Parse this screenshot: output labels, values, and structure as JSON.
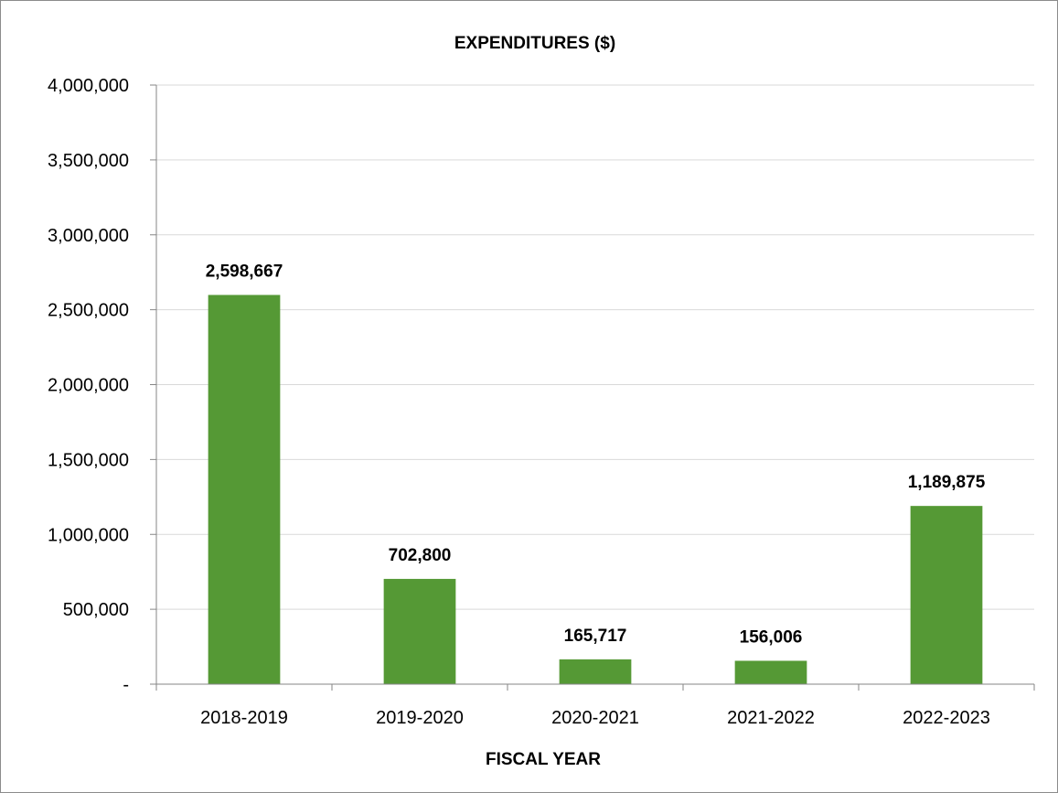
{
  "chart_data": {
    "type": "bar",
    "title": "EXPENDITURES ($)",
    "xlabel": "FISCAL YEAR",
    "ylabel": "",
    "categories": [
      "2018-2019",
      "2019-2020",
      "2020-2021",
      "2021-2022",
      "2022-2023"
    ],
    "values": [
      2598667,
      702800,
      165717,
      156006,
      1189875
    ],
    "value_labels": [
      "2,598,667",
      "702,800",
      "165,717",
      "156,006",
      "1,189,875"
    ],
    "ylim": [
      0,
      4000000
    ],
    "yticks": [
      0,
      500000,
      1000000,
      1500000,
      2000000,
      2500000,
      3000000,
      3500000,
      4000000
    ],
    "ytick_labels": [
      "-",
      "500,000",
      "1,000,000",
      "1,500,000",
      "2,000,000",
      "2,500,000",
      "3,000,000",
      "3,500,000",
      "4,000,000"
    ],
    "grid": true,
    "legend": "none",
    "bar_color": "#559935",
    "grid_color": "#d9d9d9",
    "axis_color": "#868686"
  }
}
